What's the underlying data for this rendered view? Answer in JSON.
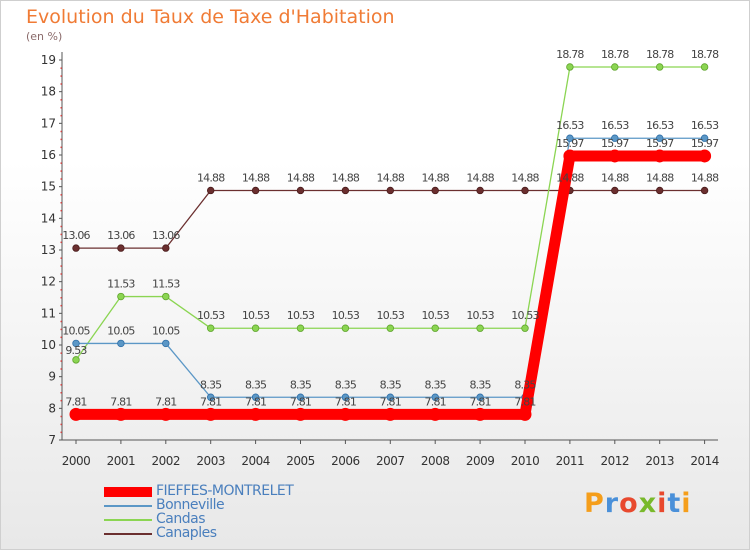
{
  "header": {
    "title": "Evolution du Taux de Taxe d'Habitation",
    "unit": "(en %)"
  },
  "logo": {
    "text": "Proxiti"
  },
  "colors": {
    "fieffes": "#ff0000",
    "bonneville": "#5b97c6",
    "candas": "#8bd552",
    "canaples": "#6b2f2f",
    "title": "#f07b35",
    "legend_text": "#4a7fbd"
  },
  "chart_data": {
    "type": "line",
    "title": "Evolution du Taux de Taxe d'Habitation",
    "ylabel": "(en %)",
    "xlabel": "",
    "ylim": [
      7,
      19
    ],
    "yticks": [
      7,
      8,
      9,
      10,
      11,
      12,
      13,
      14,
      15,
      16,
      17,
      18,
      19
    ],
    "grid": false,
    "legend_position": "bottom-left",
    "categories": [
      "2000",
      "2001",
      "2002",
      "2003",
      "2004",
      "2005",
      "2006",
      "2007",
      "2008",
      "2009",
      "2010",
      "2011",
      "2012",
      "2013",
      "2014"
    ],
    "series": [
      {
        "name": "FIEFFES-MONTRELET",
        "color": "#ff0000",
        "values": [
          7.81,
          7.81,
          7.81,
          7.81,
          7.81,
          7.81,
          7.81,
          7.81,
          7.81,
          7.81,
          7.81,
          15.97,
          15.97,
          15.97,
          15.97
        ]
      },
      {
        "name": "Bonneville",
        "color": "#5b97c6",
        "values": [
          10.05,
          10.05,
          10.05,
          8.35,
          8.35,
          8.35,
          8.35,
          8.35,
          8.35,
          8.35,
          8.35,
          16.53,
          16.53,
          16.53,
          16.53
        ]
      },
      {
        "name": "Candas",
        "color": "#8bd552",
        "values": [
          9.53,
          11.53,
          11.53,
          10.53,
          10.53,
          10.53,
          10.53,
          10.53,
          10.53,
          10.53,
          10.53,
          18.78,
          18.78,
          18.78,
          18.78
        ]
      },
      {
        "name": "Canaples",
        "color": "#6b2f2f",
        "values": [
          13.06,
          13.06,
          13.06,
          14.88,
          14.88,
          14.88,
          14.88,
          14.88,
          14.88,
          14.88,
          14.88,
          14.88,
          14.88,
          14.88,
          14.88
        ]
      }
    ],
    "data_labels": [
      [
        "7.81",
        "7.81",
        "7.81",
        "7.81",
        "7.81",
        "7.81",
        "7.81",
        "7.81",
        "7.81",
        "7.81",
        "7.81",
        "15.97",
        "15.97",
        "15.97",
        "15.97"
      ],
      [
        "10.05",
        "10.05",
        "10.05",
        "8.35",
        "8.35",
        "8.35",
        "8.35",
        "8.35",
        "8.35",
        "8.35",
        "8.35",
        "16.53",
        "16.53",
        "16.53",
        "16.53"
      ],
      [
        "9.53",
        "11.53",
        "11.53",
        "10.53",
        "10.53",
        "10.53",
        "10.53",
        "10.53",
        "10.53",
        "10.53",
        "10.53",
        "18.78",
        "18.78",
        "18.78",
        "18.78"
      ],
      [
        "13.06",
        "13.06",
        "13.06",
        "14.88",
        "14.88",
        "14.88",
        "14.88",
        "14.88",
        "14.88",
        "14.88",
        "14.88",
        "14.88",
        "14.88",
        "14.88",
        "14.88"
      ]
    ]
  }
}
